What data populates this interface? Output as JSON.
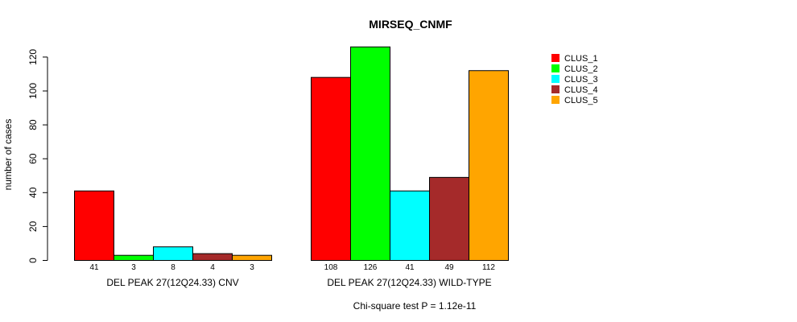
{
  "chart_data": {
    "type": "bar",
    "title": "MIRSEQ_CNMF",
    "ylabel": "number of cases",
    "xlabel": "",
    "ylim": [
      0,
      125
    ],
    "yticks": [
      0,
      20,
      40,
      60,
      80,
      100,
      120
    ],
    "groups": [
      "DEL PEAK 27(12Q24.33) CNV",
      "DEL PEAK 27(12Q24.33) WILD-TYPE"
    ],
    "series": [
      {
        "name": "CLUS_1",
        "color": "#ff0000",
        "values": [
          41,
          108
        ]
      },
      {
        "name": "CLUS_2",
        "color": "#00ff00",
        "values": [
          3,
          126
        ]
      },
      {
        "name": "CLUS_3",
        "color": "#00ffff",
        "values": [
          8,
          41
        ]
      },
      {
        "name": "CLUS_4",
        "color": "#a52a2a",
        "values": [
          4,
          49
        ]
      },
      {
        "name": "CLUS_5",
        "color": "#ffa500",
        "values": [
          3,
          112
        ]
      }
    ],
    "legend_position": "top-right",
    "footnote": "Chi-square test P = 1.12e-11"
  }
}
